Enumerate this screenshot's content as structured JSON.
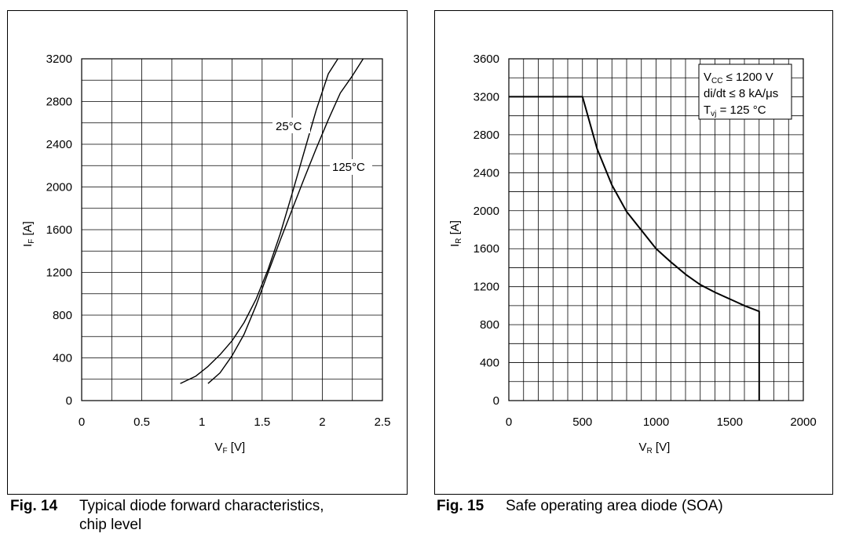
{
  "figures": [
    {
      "caption_num": "Fig. 14",
      "caption_line1": "Typical diode forward characteristics,",
      "caption_line2": "chip level"
    },
    {
      "caption_num": "Fig. 15",
      "caption_line1": "Safe operating area diode (SOA)",
      "caption_line2": ""
    }
  ],
  "chart_data": [
    {
      "type": "line",
      "xlabel_main": "V",
      "xlabel_sub": "F",
      "xlabel_unit": " [V]",
      "ylabel_main": "I",
      "ylabel_sub": "F",
      "ylabel_unit": " [A]",
      "xlim": [
        0,
        2.5
      ],
      "ylim": [
        0,
        3200
      ],
      "x_ticks": [
        "0",
        "0.5",
        "1",
        "1.5",
        "2",
        "2.5"
      ],
      "y_ticks": [
        "0",
        "400",
        "800",
        "1200",
        "1600",
        "2000",
        "2400",
        "2800",
        "3200"
      ],
      "grid": true,
      "series": [
        {
          "name": "25°C",
          "x": [
            0.82,
            0.95,
            1.05,
            1.15,
            1.25,
            1.35,
            1.45,
            1.55,
            1.65,
            1.75,
            1.85,
            1.95,
            2.05,
            2.13
          ],
          "y": [
            160,
            230,
            320,
            430,
            560,
            730,
            950,
            1230,
            1560,
            1940,
            2330,
            2720,
            3060,
            3200
          ]
        },
        {
          "name": "125°C",
          "x": [
            1.05,
            1.15,
            1.25,
            1.35,
            1.45,
            1.55,
            1.65,
            1.75,
            1.85,
            1.95,
            2.05,
            2.15,
            2.25,
            2.34
          ],
          "y": [
            160,
            260,
            420,
            620,
            890,
            1200,
            1500,
            1790,
            2080,
            2360,
            2630,
            2880,
            3040,
            3200
          ]
        }
      ]
    },
    {
      "type": "line",
      "xlabel_main": "V",
      "xlabel_sub": "R",
      "xlabel_unit": " [V]",
      "ylabel_main": "I",
      "ylabel_sub": "R",
      "ylabel_unit": " [A]",
      "xlim": [
        0,
        2000
      ],
      "ylim": [
        0,
        3600
      ],
      "x_ticks": [
        "0",
        "500",
        "1000",
        "1500",
        "2000"
      ],
      "y_ticks": [
        "0",
        "400",
        "800",
        "1200",
        "1600",
        "2000",
        "2400",
        "2800",
        "3200",
        "3600"
      ],
      "grid": true,
      "legend_position": "top-right",
      "legend_lines": [
        {
          "main": "V",
          "sub": "CC",
          "rest": " ≤ 1200 V"
        },
        {
          "main": "di/dt ≤ 8 kA/μs",
          "sub": "",
          "rest": ""
        },
        {
          "main": "T",
          "sub": "vj",
          "rest": " = 125 °C"
        }
      ],
      "series": [
        {
          "x": [
            0,
            500,
            600,
            700,
            800,
            1000,
            1100,
            1200,
            1300,
            1400,
            1500,
            1600,
            1700,
            1700
          ],
          "y": [
            3200,
            3200,
            2650,
            2270,
            1990,
            1600,
            1460,
            1330,
            1220,
            1140,
            1070,
            1000,
            940,
            0
          ]
        }
      ]
    }
  ]
}
